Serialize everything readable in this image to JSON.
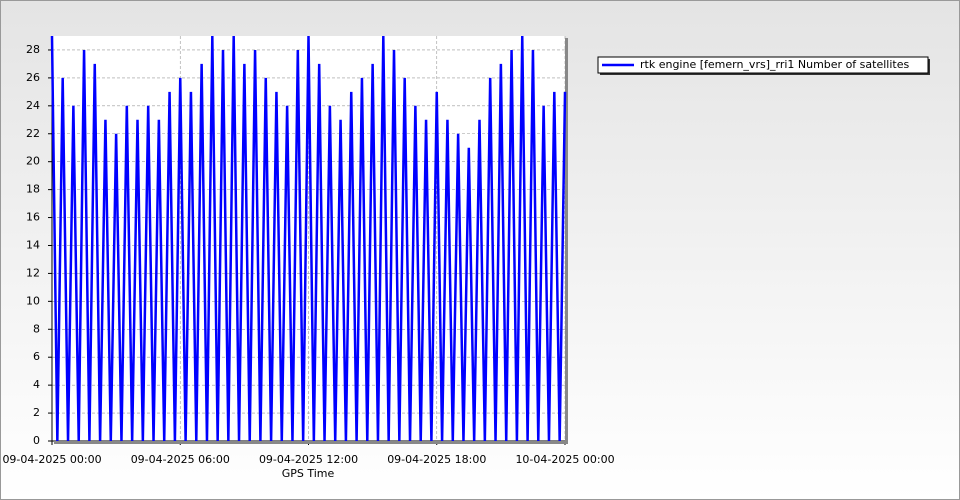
{
  "chart_data": {
    "type": "line",
    "x_label": "GPS Time",
    "x": [
      0,
      0.25,
      0.5,
      0.75,
      1,
      1.25,
      1.5,
      1.75,
      2,
      2.25,
      2.5,
      2.75,
      3,
      3.25,
      3.5,
      3.75,
      4,
      4.25,
      4.5,
      4.75,
      5,
      5.25,
      5.5,
      5.75,
      6,
      6.25,
      6.5,
      6.75,
      7,
      7.25,
      7.5,
      7.75,
      8,
      8.25,
      8.5,
      8.75,
      9,
      9.25,
      9.5,
      9.75,
      10,
      10.25,
      10.5,
      10.75,
      11,
      11.25,
      11.5,
      11.75,
      12,
      12.25,
      12.5,
      12.75,
      13,
      13.25,
      13.5,
      13.75,
      14,
      14.25,
      14.5,
      14.75,
      15,
      15.25,
      15.5,
      15.75,
      16,
      16.25,
      16.5,
      16.75,
      17,
      17.25,
      17.5,
      17.75,
      18,
      18.25,
      18.5,
      18.75,
      19,
      19.25,
      19.5,
      19.75,
      20,
      20.25,
      20.5,
      20.75,
      21,
      21.25,
      21.5,
      21.75,
      22,
      22.25,
      22.5,
      22.75,
      23,
      23.25,
      23.5,
      23.75,
      24
    ],
    "series": [
      {
        "name": "rtk engine [femern_vrs]_rri1 Number of satellites",
        "color": "#0000ff",
        "values": [
          29,
          0,
          26,
          0,
          24,
          0,
          28,
          0,
          27,
          0,
          23,
          0,
          22,
          0,
          24,
          0,
          23,
          0,
          24,
          0,
          23,
          0,
          25,
          0,
          26,
          0,
          25,
          0,
          27,
          0,
          29,
          0,
          28,
          0,
          29,
          0,
          27,
          0,
          28,
          0,
          26,
          0,
          25,
          0,
          24,
          0,
          28,
          0,
          29,
          0,
          27,
          0,
          24,
          0,
          23,
          0,
          25,
          0,
          26,
          0,
          27,
          0,
          29,
          0,
          28,
          0,
          26,
          0,
          24,
          0,
          23,
          0,
          25,
          0,
          23,
          0,
          22,
          0,
          21,
          0,
          23,
          0,
          26,
          0,
          27,
          0,
          28,
          0,
          29,
          0,
          28,
          0,
          24,
          0,
          25,
          0,
          25
        ]
      }
    ],
    "xlim": [
      0,
      24
    ],
    "xticks": [
      {
        "value": 0,
        "label": "09-04-2025 00:00"
      },
      {
        "value": 6,
        "label": "09-04-2025 06:00"
      },
      {
        "value": 12,
        "label": "09-04-2025 12:00"
      },
      {
        "value": 18,
        "label": "09-04-2025 18:00"
      },
      {
        "value": 24,
        "label": "10-04-2025 00:00"
      }
    ],
    "ylim": [
      0,
      29
    ],
    "yticks": [
      0,
      2,
      4,
      6,
      8,
      10,
      12,
      14,
      16,
      18,
      20,
      22,
      24,
      26,
      28
    ],
    "grid": true,
    "legend": "top-right"
  }
}
